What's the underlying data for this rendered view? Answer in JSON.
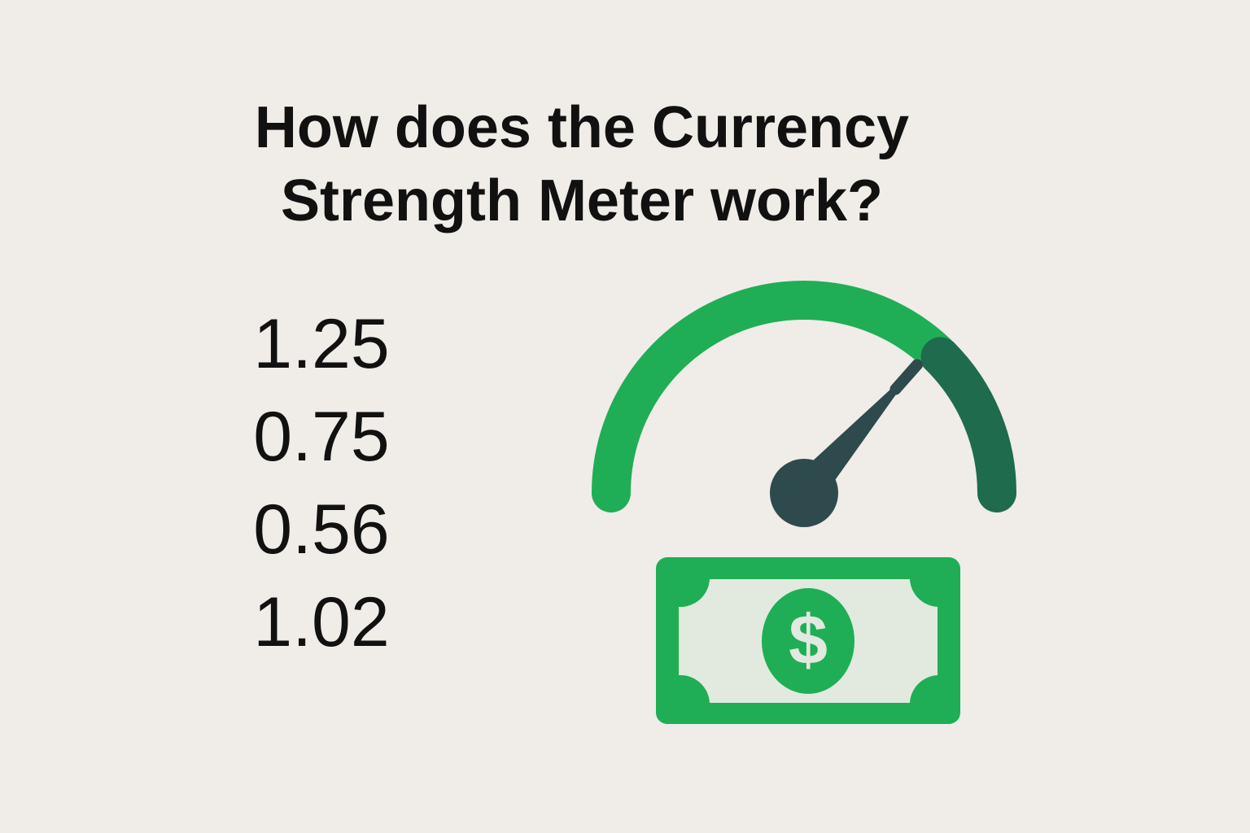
{
  "header": {
    "title_line1": "How does the Currency",
    "title_line2": "Strength Meter work?"
  },
  "values": [
    "1.25",
    "0.75",
    "0.56",
    "1.02"
  ],
  "meter": {
    "level": 0.73,
    "strong_zone_start": 0.75
  },
  "bill": {
    "symbol": "$"
  },
  "colors": {
    "background": "#f0ece8",
    "text": "#111111",
    "green": "#1fae55",
    "dark_green": "#1e6b4e",
    "needle": "#2f4a4c",
    "bill_inner": "#e2e9df"
  },
  "icons": [
    "gauge-icon",
    "dollar-bill-icon"
  ]
}
